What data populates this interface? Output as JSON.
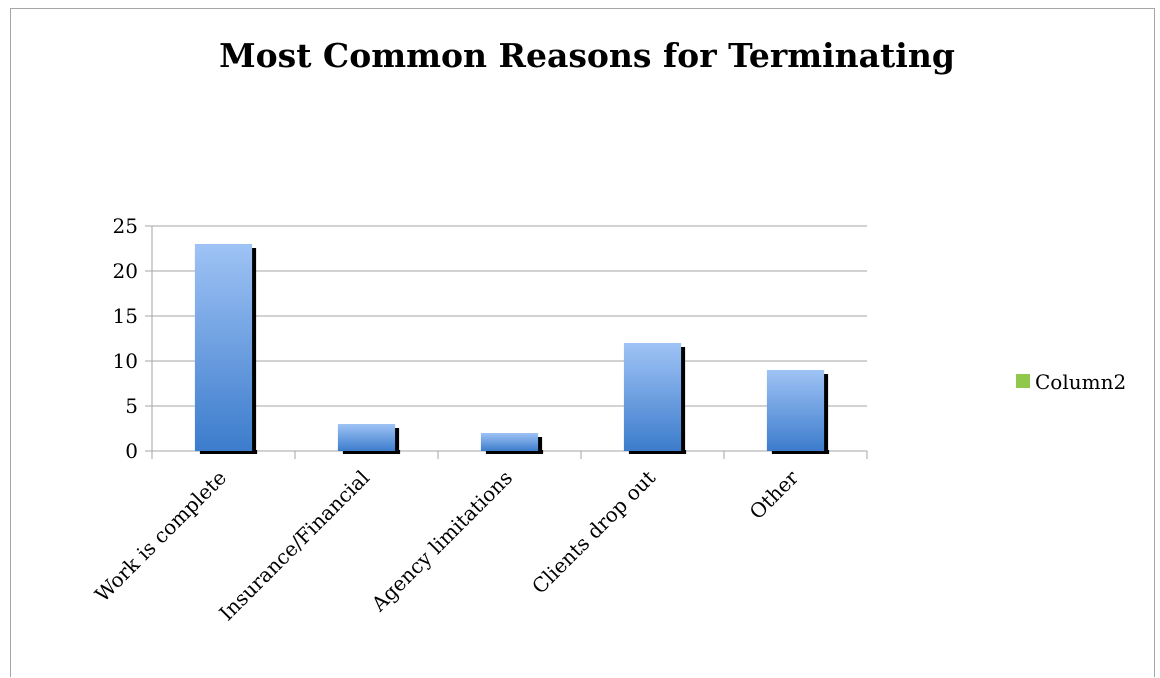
{
  "chart_data": {
    "type": "bar",
    "title": "Most Common Reasons for Terminating",
    "xlabel": "",
    "ylabel": "",
    "categories": [
      "Work is complete",
      "Insurance/Financial",
      "Agency limitations",
      "Clients drop out",
      "Other"
    ],
    "series": [
      {
        "name": "Column2",
        "values": [
          23,
          3,
          2,
          12,
          9
        ]
      }
    ],
    "ylim": [
      0,
      25
    ],
    "yticks": [
      "0",
      "5",
      "10",
      "15",
      "20",
      "25"
    ],
    "grid": true,
    "legend_position": "right",
    "colors": {
      "bar_top": "#9fc3f5",
      "bar_bottom": "#3c7ccc",
      "bar_shadow": "#000000",
      "legend_swatch": "#8fc84a",
      "gridline": "#a6a6a6"
    }
  }
}
